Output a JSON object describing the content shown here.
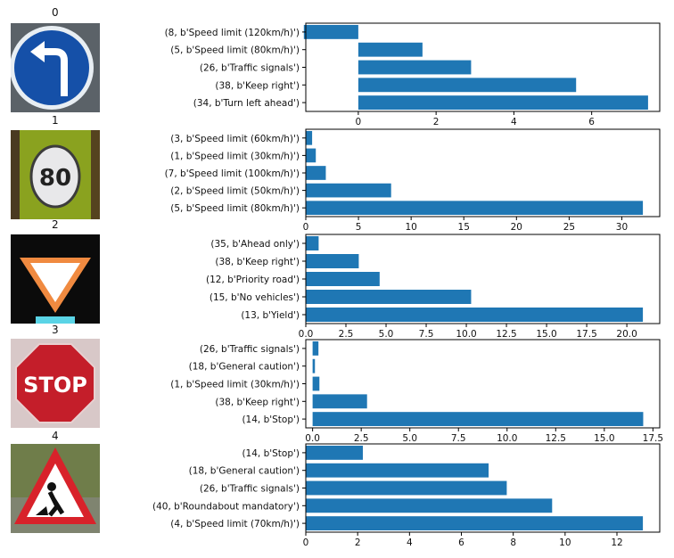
{
  "colors": {
    "bar": "#1f77b4",
    "axis": "#000000"
  },
  "rows": [
    {
      "title": "0",
      "sign_icon": "turn-left-sign-icon"
    },
    {
      "title": "1",
      "sign_icon": "speed-limit-80-sign-icon",
      "sign_text": "80"
    },
    {
      "title": "2",
      "sign_icon": "yield-sign-icon"
    },
    {
      "title": "3",
      "sign_icon": "stop-sign-icon",
      "sign_text": "STOP"
    },
    {
      "title": "4",
      "sign_icon": "road-work-sign-icon"
    }
  ],
  "chart_data": [
    {
      "type": "bar",
      "orientation": "horizontal",
      "categories": [
        "(8, b'Speed limit (120km/h)')",
        "(5, b'Speed limit (80km/h)')",
        "(26, b'Traffic signals')",
        "(38, b'Keep right')",
        "(34, b'Turn left ahead')"
      ],
      "values": [
        -1.4,
        1.65,
        2.9,
        5.6,
        7.45
      ],
      "xlim": [
        -1.35,
        7.75
      ],
      "xticks": [
        0,
        2,
        4,
        6
      ],
      "xtick_labels": [
        "0",
        "2",
        "4",
        "6"
      ]
    },
    {
      "type": "bar",
      "orientation": "horizontal",
      "categories": [
        "(3, b'Speed limit (60km/h)')",
        "(1, b'Speed limit (30km/h)')",
        "(7, b'Speed limit (100km/h)')",
        "(2, b'Speed limit (50km/h)')",
        "(5, b'Speed limit (80km/h)')"
      ],
      "values": [
        0.6,
        0.95,
        1.9,
        8.1,
        32
      ],
      "xlim": [
        0,
        33.6
      ],
      "xticks": [
        0,
        5,
        10,
        15,
        20,
        25,
        30
      ],
      "xtick_labels": [
        "0",
        "5",
        "10",
        "15",
        "20",
        "25",
        "30"
      ]
    },
    {
      "type": "bar",
      "orientation": "horizontal",
      "categories": [
        "(35, b'Ahead only')",
        "(38, b'Keep right')",
        "(12, b'Priority road')",
        "(15, b'No vehicles')",
        "(13, b'Yield')"
      ],
      "values": [
        0.8,
        3.3,
        4.6,
        10.3,
        21
      ],
      "xlim": [
        0,
        22.05
      ],
      "xticks": [
        0,
        2.5,
        5,
        7.5,
        10,
        12.5,
        15,
        17.5,
        20
      ],
      "xtick_labels": [
        "0.0",
        "2.5",
        "5.0",
        "7.5",
        "10.0",
        "12.5",
        "15.0",
        "17.5",
        "20.0"
      ]
    },
    {
      "type": "bar",
      "orientation": "horizontal",
      "categories": [
        "(26, b'Traffic signals')",
        "(18, b'General caution')",
        "(1, b'Speed limit (30km/h)')",
        "(38, b'Keep right')",
        "(14, b'Stop')"
      ],
      "values": [
        0.3,
        0.12,
        0.35,
        2.8,
        17
      ],
      "xlim": [
        -0.35,
        17.85
      ],
      "xticks": [
        0,
        2.5,
        5,
        7.5,
        10,
        12.5,
        15,
        17.5
      ],
      "xtick_labels": [
        "0.0",
        "2.5",
        "5.0",
        "7.5",
        "10.0",
        "12.5",
        "15.0",
        "17.5"
      ]
    },
    {
      "type": "bar",
      "orientation": "horizontal",
      "categories": [
        "(14, b'Stop')",
        "(18, b'General caution')",
        "(26, b'Traffic signals')",
        "(40, b'Roundabout mandatory')",
        "(4, b'Speed limit (70km/h)')"
      ],
      "values": [
        2.2,
        7.05,
        7.75,
        9.5,
        13
      ],
      "xlim": [
        0,
        13.65
      ],
      "xticks": [
        0,
        2,
        4,
        6,
        8,
        10,
        12
      ],
      "xtick_labels": [
        "0",
        "2",
        "4",
        "6",
        "8",
        "10",
        "12"
      ]
    }
  ]
}
